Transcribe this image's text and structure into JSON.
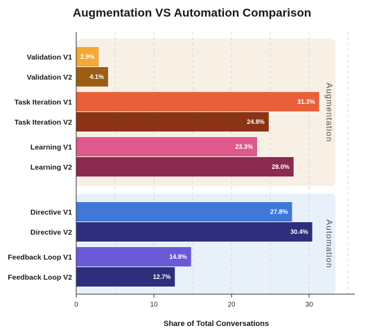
{
  "chart_data": {
    "type": "bar",
    "orientation": "horizontal",
    "title": "Augmentation VS Automation Comparison",
    "xlabel": "Share of Total Conversations",
    "ylabel": "",
    "xlim": [
      0,
      35
    ],
    "xticks": [
      0,
      10,
      20,
      30
    ],
    "grid": "vertical-dashed",
    "categories": [
      "Validation V1",
      "Validation V2",
      "Task Iteration V1",
      "Task Iteration V2",
      "Learning V1",
      "Learning V2",
      "Directive V1",
      "Directive V2",
      "Feedback Loop V1",
      "Feedback Loop V2"
    ],
    "values": [
      2.9,
      4.1,
      31.3,
      24.8,
      23.3,
      28.0,
      27.8,
      30.4,
      14.8,
      12.7
    ],
    "value_labels": [
      "2.9%",
      "4.1%",
      "31.3%",
      "24.8%",
      "23.3%",
      "28.0%",
      "27.8%",
      "30.4%",
      "14.8%",
      "12.7%"
    ],
    "colors": [
      "#f6a832",
      "#9b5e12",
      "#e8603a",
      "#8b3315",
      "#df5a8c",
      "#8b2a4e",
      "#3f78d8",
      "#2f2e7c",
      "#6a5ad8",
      "#2f2e7c"
    ],
    "groups": [
      {
        "name": "Augmentation",
        "categories": [
          "Validation V1",
          "Validation V2",
          "Task Iteration V1",
          "Task Iteration V2",
          "Learning V1",
          "Learning V2"
        ],
        "background": "#f8efe5"
      },
      {
        "name": "Automation",
        "categories": [
          "Directive V1",
          "Directive V2",
          "Feedback Loop V1",
          "Feedback Loop V2"
        ],
        "background": "#e8f1fa"
      }
    ]
  }
}
